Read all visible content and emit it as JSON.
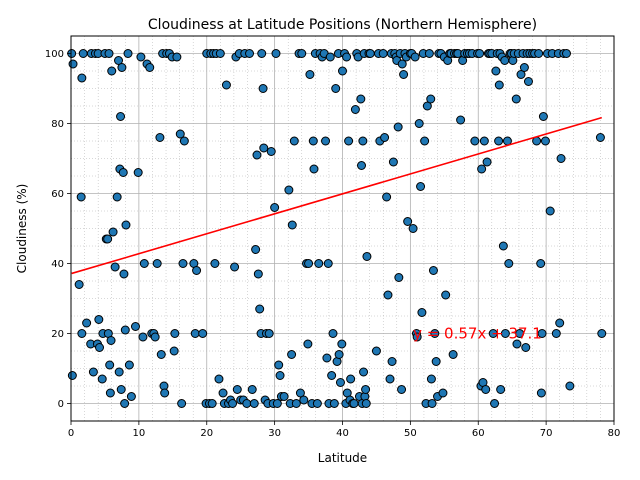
{
  "chart_data": {
    "type": "scatter",
    "title": "Cloudiness at Latitude Positions (Northern Hemisphere)",
    "xlabel": "Latitude",
    "ylabel": "Cloudiness (%)",
    "xlim": [
      0,
      80
    ],
    "ylim": [
      -5,
      105
    ],
    "xticks": [
      0,
      10,
      20,
      30,
      40,
      50,
      60,
      70,
      80
    ],
    "yticks": [
      0,
      20,
      40,
      60,
      80,
      100
    ],
    "grid": true,
    "minor_grid": true,
    "colors": {
      "points": "#1f77b4",
      "edge": "#000000",
      "regression": "#ff0000"
    },
    "annotation": "y = 0.57x + 37.1",
    "regression": {
      "slope": 0.57,
      "intercept": 37.1,
      "x_range": [
        0.1,
        78.2
      ]
    },
    "points": [
      [
        0.1,
        100
      ],
      [
        0.3,
        97
      ],
      [
        0.2,
        8
      ],
      [
        1.2,
        34
      ],
      [
        1.5,
        59
      ],
      [
        1.6,
        93
      ],
      [
        1.8,
        100
      ],
      [
        1.6,
        20
      ],
      [
        2.3,
        23
      ],
      [
        2.9,
        17
      ],
      [
        3.0,
        100
      ],
      [
        3.3,
        9
      ],
      [
        3.6,
        100
      ],
      [
        3.9,
        17
      ],
      [
        4.1,
        24
      ],
      [
        4.2,
        16
      ],
      [
        4.0,
        100
      ],
      [
        4.6,
        7
      ],
      [
        4.7,
        20
      ],
      [
        5.0,
        100
      ],
      [
        5.2,
        47
      ],
      [
        5.4,
        47
      ],
      [
        5.5,
        20
      ],
      [
        5.6,
        100
      ],
      [
        5.7,
        11
      ],
      [
        5.8,
        3
      ],
      [
        5.9,
        18
      ],
      [
        6.0,
        95
      ],
      [
        6.2,
        49
      ],
      [
        6.5,
        39
      ],
      [
        6.8,
        59
      ],
      [
        7.0,
        98
      ],
      [
        7.1,
        9
      ],
      [
        7.2,
        67
      ],
      [
        7.3,
        82
      ],
      [
        7.4,
        4
      ],
      [
        7.5,
        96
      ],
      [
        7.7,
        66
      ],
      [
        7.8,
        37
      ],
      [
        7.9,
        0
      ],
      [
        8.0,
        21
      ],
      [
        8.1,
        51
      ],
      [
        8.4,
        100
      ],
      [
        8.6,
        11
      ],
      [
        8.9,
        2
      ],
      [
        9.5,
        22
      ],
      [
        9.9,
        66
      ],
      [
        10.3,
        99
      ],
      [
        10.6,
        19
      ],
      [
        10.8,
        40
      ],
      [
        11.2,
        97
      ],
      [
        11.6,
        96
      ],
      [
        11.9,
        20
      ],
      [
        12.2,
        20
      ],
      [
        12.4,
        19
      ],
      [
        12.7,
        40
      ],
      [
        13.1,
        76
      ],
      [
        13.3,
        14
      ],
      [
        13.5,
        100
      ],
      [
        13.7,
        5
      ],
      [
        13.8,
        3
      ],
      [
        14.1,
        100
      ],
      [
        14.5,
        100
      ],
      [
        14.9,
        99
      ],
      [
        15.2,
        15
      ],
      [
        15.3,
        20
      ],
      [
        15.6,
        99
      ],
      [
        16.1,
        77
      ],
      [
        16.3,
        0
      ],
      [
        16.5,
        40
      ],
      [
        16.7,
        75
      ],
      [
        18.1,
        40
      ],
      [
        18.3,
        20
      ],
      [
        18.5,
        38
      ],
      [
        19.4,
        20
      ],
      [
        19.9,
        0
      ],
      [
        20.0,
        100
      ],
      [
        20.4,
        0
      ],
      [
        20.6,
        100
      ],
      [
        20.8,
        0
      ],
      [
        21.0,
        100
      ],
      [
        21.2,
        40
      ],
      [
        21.4,
        100
      ],
      [
        21.8,
        7
      ],
      [
        22.0,
        100
      ],
      [
        22.4,
        3
      ],
      [
        22.6,
        0
      ],
      [
        22.9,
        91
      ],
      [
        23.2,
        0
      ],
      [
        23.5,
        1
      ],
      [
        23.8,
        0
      ],
      [
        24.1,
        39
      ],
      [
        24.3,
        99
      ],
      [
        24.5,
        4
      ],
      [
        24.8,
        100
      ],
      [
        25.0,
        1
      ],
      [
        25.4,
        1
      ],
      [
        25.6,
        100
      ],
      [
        25.9,
        0
      ],
      [
        26.3,
        100
      ],
      [
        26.7,
        4
      ],
      [
        27.0,
        0
      ],
      [
        27.2,
        44
      ],
      [
        27.4,
        71
      ],
      [
        27.6,
        37
      ],
      [
        27.8,
        27
      ],
      [
        28.0,
        20
      ],
      [
        28.1,
        100
      ],
      [
        28.3,
        90
      ],
      [
        28.4,
        73
      ],
      [
        28.6,
        1
      ],
      [
        28.8,
        20
      ],
      [
        29.0,
        0
      ],
      [
        29.2,
        20
      ],
      [
        29.5,
        72
      ],
      [
        29.8,
        0
      ],
      [
        30.0,
        56
      ],
      [
        30.2,
        100
      ],
      [
        30.4,
        0
      ],
      [
        30.6,
        11
      ],
      [
        30.8,
        8
      ],
      [
        31.0,
        2
      ],
      [
        31.4,
        2
      ],
      [
        32.1,
        61
      ],
      [
        32.3,
        0
      ],
      [
        32.5,
        14
      ],
      [
        32.6,
        51
      ],
      [
        32.9,
        75
      ],
      [
        33.2,
        0
      ],
      [
        33.6,
        100
      ],
      [
        33.8,
        3
      ],
      [
        34.0,
        100
      ],
      [
        34.3,
        1
      ],
      [
        34.7,
        40
      ],
      [
        34.9,
        17
      ],
      [
        35.0,
        40
      ],
      [
        35.2,
        94
      ],
      [
        35.5,
        0
      ],
      [
        35.7,
        75
      ],
      [
        35.8,
        67
      ],
      [
        36.0,
        100
      ],
      [
        36.3,
        0
      ],
      [
        36.5,
        40
      ],
      [
        36.7,
        100
      ],
      [
        37.0,
        99
      ],
      [
        37.3,
        100
      ],
      [
        37.5,
        75
      ],
      [
        37.7,
        13
      ],
      [
        37.9,
        40
      ],
      [
        38.0,
        0
      ],
      [
        38.2,
        99
      ],
      [
        38.4,
        8
      ],
      [
        38.6,
        20
      ],
      [
        38.8,
        0
      ],
      [
        39.0,
        90
      ],
      [
        39.2,
        12
      ],
      [
        39.4,
        100
      ],
      [
        39.5,
        14
      ],
      [
        39.7,
        6
      ],
      [
        39.9,
        17
      ],
      [
        40.0,
        95
      ],
      [
        40.3,
        100
      ],
      [
        40.5,
        0
      ],
      [
        40.6,
        99
      ],
      [
        40.7,
        3
      ],
      [
        40.9,
        75
      ],
      [
        41.1,
        1
      ],
      [
        41.2,
        7
      ],
      [
        41.5,
        0
      ],
      [
        41.7,
        0
      ],
      [
        41.9,
        84
      ],
      [
        42.1,
        100
      ],
      [
        42.3,
        99
      ],
      [
        42.5,
        2
      ],
      [
        42.7,
        87
      ],
      [
        42.8,
        68
      ],
      [
        42.9,
        0
      ],
      [
        43.0,
        75
      ],
      [
        43.1,
        9
      ],
      [
        43.2,
        100
      ],
      [
        43.3,
        2
      ],
      [
        43.4,
        4
      ],
      [
        43.5,
        0
      ],
      [
        43.6,
        42
      ],
      [
        43.9,
        100
      ],
      [
        44.1,
        100
      ],
      [
        45.0,
        15
      ],
      [
        45.3,
        100
      ],
      [
        45.5,
        75
      ],
      [
        46.0,
        100
      ],
      [
        46.2,
        76
      ],
      [
        46.5,
        59
      ],
      [
        46.7,
        31
      ],
      [
        47.0,
        7
      ],
      [
        47.2,
        100
      ],
      [
        47.3,
        12
      ],
      [
        47.5,
        69
      ],
      [
        47.7,
        100
      ],
      [
        47.9,
        99
      ],
      [
        48.0,
        98
      ],
      [
        48.2,
        79
      ],
      [
        48.3,
        36
      ],
      [
        48.5,
        100
      ],
      [
        48.7,
        4
      ],
      [
        48.8,
        97
      ],
      [
        49.0,
        94
      ],
      [
        49.2,
        100
      ],
      [
        49.4,
        99
      ],
      [
        49.6,
        52
      ],
      [
        50.0,
        100
      ],
      [
        50.2,
        100
      ],
      [
        50.4,
        50
      ],
      [
        50.7,
        99
      ],
      [
        50.9,
        20
      ],
      [
        51.0,
        19
      ],
      [
        51.3,
        80
      ],
      [
        51.5,
        62
      ],
      [
        51.7,
        26
      ],
      [
        51.9,
        100
      ],
      [
        52.1,
        75
      ],
      [
        52.3,
        0
      ],
      [
        52.5,
        85
      ],
      [
        52.8,
        100
      ],
      [
        53.0,
        87
      ],
      [
        53.1,
        7
      ],
      [
        53.2,
        0
      ],
      [
        53.4,
        38
      ],
      [
        53.6,
        20
      ],
      [
        53.8,
        12
      ],
      [
        54.0,
        2
      ],
      [
        54.2,
        100
      ],
      [
        54.5,
        100
      ],
      [
        54.8,
        3
      ],
      [
        55.0,
        99
      ],
      [
        55.2,
        31
      ],
      [
        55.5,
        98
      ],
      [
        55.8,
        100
      ],
      [
        56.0,
        100
      ],
      [
        56.3,
        14
      ],
      [
        56.5,
        100
      ],
      [
        56.8,
        100
      ],
      [
        57.0,
        100
      ],
      [
        57.4,
        81
      ],
      [
        57.7,
        98
      ],
      [
        58.0,
        100
      ],
      [
        58.4,
        100
      ],
      [
        58.7,
        100
      ],
      [
        59.1,
        100
      ],
      [
        59.5,
        75
      ],
      [
        59.9,
        100
      ],
      [
        60.2,
        100
      ],
      [
        60.4,
        5
      ],
      [
        60.5,
        67
      ],
      [
        60.7,
        6
      ],
      [
        60.9,
        75
      ],
      [
        61.1,
        4
      ],
      [
        61.3,
        69
      ],
      [
        61.5,
        100
      ],
      [
        61.7,
        100
      ],
      [
        62.0,
        100
      ],
      [
        62.2,
        20
      ],
      [
        62.4,
        0
      ],
      [
        62.6,
        95
      ],
      [
        62.8,
        100
      ],
      [
        63.0,
        75
      ],
      [
        63.1,
        91
      ],
      [
        63.2,
        100
      ],
      [
        63.3,
        4
      ],
      [
        63.5,
        99
      ],
      [
        63.7,
        45
      ],
      [
        63.9,
        98
      ],
      [
        64.0,
        20
      ],
      [
        64.3,
        75
      ],
      [
        64.5,
        40
      ],
      [
        64.7,
        100
      ],
      [
        64.9,
        100
      ],
      [
        65.1,
        98
      ],
      [
        65.3,
        100
      ],
      [
        65.6,
        87
      ],
      [
        65.7,
        17
      ],
      [
        65.9,
        100
      ],
      [
        66.1,
        20
      ],
      [
        66.3,
        94
      ],
      [
        66.6,
        100
      ],
      [
        66.8,
        96
      ],
      [
        67.0,
        16
      ],
      [
        67.2,
        100
      ],
      [
        67.4,
        92
      ],
      [
        67.6,
        100
      ],
      [
        68.0,
        100
      ],
      [
        68.3,
        100
      ],
      [
        68.6,
        75
      ],
      [
        68.9,
        100
      ],
      [
        69.2,
        40
      ],
      [
        69.3,
        3
      ],
      [
        69.4,
        20
      ],
      [
        69.6,
        82
      ],
      [
        69.9,
        75
      ],
      [
        70.2,
        100
      ],
      [
        70.6,
        55
      ],
      [
        70.9,
        100
      ],
      [
        71.5,
        20
      ],
      [
        71.8,
        100
      ],
      [
        72.0,
        23
      ],
      [
        72.2,
        70
      ],
      [
        72.6,
        100
      ],
      [
        73.0,
        100
      ],
      [
        73.5,
        5
      ],
      [
        78.0,
        76
      ],
      [
        78.2,
        20
      ]
    ]
  }
}
